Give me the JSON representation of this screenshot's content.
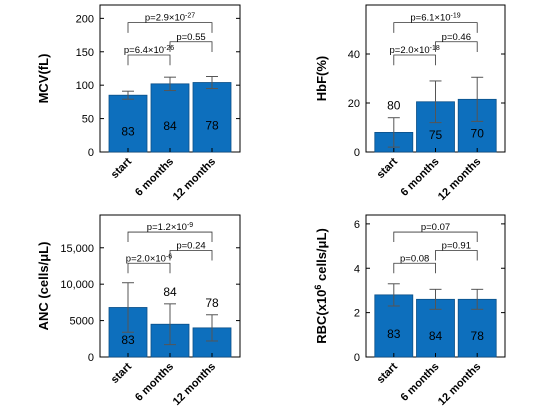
{
  "chart_data": [
    {
      "type": "bar",
      "ylabel": "MCV(fL)",
      "ylim": [
        0,
        220
      ],
      "yticks": [
        "0",
        "50",
        "100",
        "150",
        "200"
      ],
      "categories": [
        "start",
        "6 months",
        "12 months"
      ],
      "values": [
        85,
        102,
        104
      ],
      "errors": [
        6,
        10,
        9
      ],
      "bar_labels": [
        "83",
        "84",
        "78"
      ],
      "comparisons": [
        {
          "from": 0,
          "to": 2,
          "label": "p=2.9×10",
          "exponent": "-27"
        },
        {
          "from": 0,
          "to": 1,
          "label": "p=6.4×10",
          "exponent": "-26"
        },
        {
          "from": 1,
          "to": 2,
          "label": "p=0.55",
          "exponent": ""
        }
      ]
    },
    {
      "type": "bar",
      "ylabel": "HbF(%)",
      "ylim": [
        0,
        60
      ],
      "yticks": [
        "0",
        "20",
        "40"
      ],
      "categories": [
        "start",
        "6 months",
        "12 months"
      ],
      "values": [
        8,
        20.5,
        21.5
      ],
      "errors": [
        6,
        8.5,
        9
      ],
      "bar_labels": [
        "80",
        "75",
        "70"
      ],
      "comparisons": [
        {
          "from": 0,
          "to": 2,
          "label": "p=6.1×10",
          "exponent": "-19"
        },
        {
          "from": 0,
          "to": 1,
          "label": "p=2.0×10",
          "exponent": "-18"
        },
        {
          "from": 1,
          "to": 2,
          "label": "p=0.46",
          "exponent": ""
        }
      ]
    },
    {
      "type": "bar",
      "ylabel": "ANC (cells/μL)",
      "ylim": [
        0,
        19500
      ],
      "yticks": [
        "0",
        "5000",
        "10,000",
        "15,000"
      ],
      "categories": [
        "start",
        "6 months",
        "12 months"
      ],
      "values": [
        6800,
        4500,
        4000
      ],
      "errors": [
        3400,
        2800,
        1800
      ],
      "bar_labels": [
        "83",
        "84",
        "78"
      ],
      "comparisons": [
        {
          "from": 0,
          "to": 2,
          "label": "p=1.2×10",
          "exponent": "-9"
        },
        {
          "from": 0,
          "to": 1,
          "label": "p=2.0×10",
          "exponent": "-6"
        },
        {
          "from": 1,
          "to": 2,
          "label": "p=0.24",
          "exponent": ""
        }
      ]
    },
    {
      "type": "bar",
      "ylabel": "RBC(x10",
      "ylabel_sup": "6",
      "ylabel_tail": " cells/μL)",
      "ylim": [
        0,
        6.4
      ],
      "yticks": [
        "0",
        "2",
        "4",
        "6"
      ],
      "categories": [
        "start",
        "6 months",
        "12 months"
      ],
      "values": [
        2.8,
        2.6,
        2.6
      ],
      "errors": [
        0.5,
        0.45,
        0.45
      ],
      "bar_labels": [
        "83",
        "84",
        "78"
      ],
      "comparisons": [
        {
          "from": 0,
          "to": 2,
          "label": "p=0.07",
          "exponent": ""
        },
        {
          "from": 0,
          "to": 1,
          "label": "p=0.08",
          "exponent": ""
        },
        {
          "from": 1,
          "to": 2,
          "label": "p=0.91",
          "exponent": ""
        }
      ]
    }
  ],
  "colors": {
    "bar": "#0d6fbd",
    "bar_edge": "#0b4f87",
    "axis": "#000000",
    "error": "#555555"
  }
}
